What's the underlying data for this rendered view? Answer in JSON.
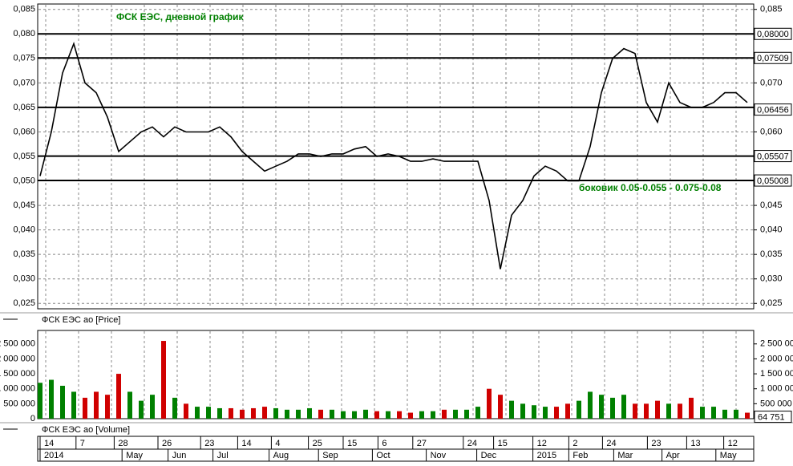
{
  "chart_data": [
    {
      "type": "line",
      "title": "ФСК ЕЭС, дневной график",
      "annotation": "боковик 0.05-0.055 - 0.075-0.08",
      "legend": "ФСК ЕЭС ао [Price]",
      "color": "#000000",
      "annotation_color": "#008000",
      "values": [
        0.051,
        0.06,
        0.072,
        0.078,
        0.07,
        0.068,
        0.063,
        0.056,
        0.058,
        0.06,
        0.061,
        0.059,
        0.061,
        0.06,
        0.06,
        0.06,
        0.061,
        0.059,
        0.056,
        0.054,
        0.052,
        0.053,
        0.054,
        0.0555,
        0.0555,
        0.055,
        0.0555,
        0.0555,
        0.0565,
        0.057,
        0.055,
        0.0555,
        0.055,
        0.054,
        0.054,
        0.0545,
        0.054,
        0.054,
        0.054,
        0.054,
        0.046,
        0.032,
        0.043,
        0.046,
        0.051,
        0.053,
        0.052,
        0.05,
        0.05,
        0.057,
        0.068,
        0.075,
        0.077,
        0.076,
        0.066,
        0.062,
        0.07,
        0.066,
        0.065,
        0.065,
        0.066,
        0.068,
        0.068,
        0.066
      ],
      "ylim": [
        0.0239,
        0.0861
      ],
      "yticks": [
        {
          "value": 0.085,
          "label": "0,085"
        },
        {
          "value": 0.08,
          "label": "0,080"
        },
        {
          "value": 0.075,
          "label": "0,075"
        },
        {
          "value": 0.07,
          "label": "0,070"
        },
        {
          "value": 0.065,
          "label": "0,065"
        },
        {
          "value": 0.06,
          "label": "0,060"
        },
        {
          "value": 0.055,
          "label": "0,055"
        },
        {
          "value": 0.05,
          "label": "0,050"
        },
        {
          "value": 0.045,
          "label": "0,045"
        },
        {
          "value": 0.04,
          "label": "0,040"
        },
        {
          "value": 0.035,
          "label": "0,035"
        },
        {
          "value": 0.03,
          "label": "0,030"
        },
        {
          "value": 0.025,
          "label": "0,025"
        }
      ],
      "levels": [
        {
          "value": 0.08,
          "label": "0,08000"
        },
        {
          "value": 0.07509,
          "label": "0,07509"
        },
        0.065,
        {
          "value": 0.05507,
          "label": "0,05507"
        },
        {
          "value": 0.05008,
          "label": "0,05008"
        }
      ],
      "last_price": {
        "value": 0.06456,
        "label": "0,06456"
      },
      "grid": true
    },
    {
      "type": "bar",
      "legend": "ФСК ЕЭС ао [Volume]",
      "up_color": "#008000",
      "down_color": "#d00000",
      "values": [
        1200000,
        1300000,
        1100000,
        900000,
        700000,
        900000,
        800000,
        1500000,
        900000,
        600000,
        800000,
        2600000,
        700000,
        500000,
        400000,
        400000,
        350000,
        350000,
        300000,
        350000,
        400000,
        350000,
        300000,
        300000,
        350000,
        300000,
        300000,
        250000,
        250000,
        300000,
        250000,
        250000,
        250000,
        200000,
        250000,
        250000,
        300000,
        300000,
        300000,
        400000,
        1000000,
        800000,
        600000,
        500000,
        450000,
        400000,
        400000,
        500000,
        600000,
        900000,
        800000,
        700000,
        800000,
        500000,
        500000,
        600000,
        500000,
        500000,
        700000,
        400000,
        400000,
        300000,
        300000,
        200000
      ],
      "last_volume": {
        "value": 64751,
        "label": "64 751"
      },
      "ylim": [
        0,
        2950000
      ],
      "yticks": [
        0,
        {
          "value": 500000,
          "label": "500 000"
        },
        {
          "value": 1000000,
          "label": "1 000 000"
        },
        {
          "value": 1500000,
          "label": "1 500 000"
        },
        {
          "value": 2000000,
          "label": "2 000 000"
        },
        {
          "value": 2500000,
          "label": "2 500 000"
        }
      ],
      "xticks": [
        {
          "value": 0,
          "label": "14"
        },
        {
          "value": 3.2,
          "label": "7"
        },
        {
          "value": 6.6,
          "label": "28"
        },
        {
          "value": 10.5,
          "label": "26"
        },
        {
          "value": 14.3,
          "label": "23"
        },
        {
          "value": 17.6,
          "label": "14"
        },
        {
          "value": 20.6,
          "label": "4"
        },
        {
          "value": 23.9,
          "label": "25"
        },
        {
          "value": 27,
          "label": "15"
        },
        {
          "value": 30.1,
          "label": "6"
        },
        {
          "value": 33.2,
          "label": "27"
        },
        {
          "value": 37.7,
          "label": "24"
        },
        {
          "value": 40.4,
          "label": "15"
        },
        {
          "value": 43.9,
          "label": "12"
        },
        {
          "value": 47.1,
          "label": "2"
        },
        {
          "value": 50.1,
          "label": "24"
        },
        {
          "value": 54.1,
          "label": "23"
        },
        {
          "value": 57.6,
          "label": "13"
        },
        {
          "value": 60.9,
          "label": "12"
        }
      ],
      "xticks_period": [
        {
          "value": 0,
          "label": "2014"
        },
        {
          "value": 7.3,
          "label": "May"
        },
        {
          "value": 11.4,
          "label": "Jun"
        },
        {
          "value": 15.4,
          "label": "Jul"
        },
        {
          "value": 20.4,
          "label": "Aug"
        },
        {
          "value": 24.8,
          "label": "Sep"
        },
        {
          "value": 29.6,
          "label": "Oct"
        },
        {
          "value": 34.4,
          "label": "Nov"
        },
        {
          "value": 38.9,
          "label": "Dec"
        },
        {
          "value": 43.9,
          "label": "2015"
        },
        {
          "value": 47.1,
          "label": "Feb"
        },
        {
          "value": 51.1,
          "label": "Mar"
        },
        {
          "value": 55.4,
          "label": "Apr"
        },
        {
          "value": 60.2,
          "label": "May"
        }
      ]
    }
  ]
}
